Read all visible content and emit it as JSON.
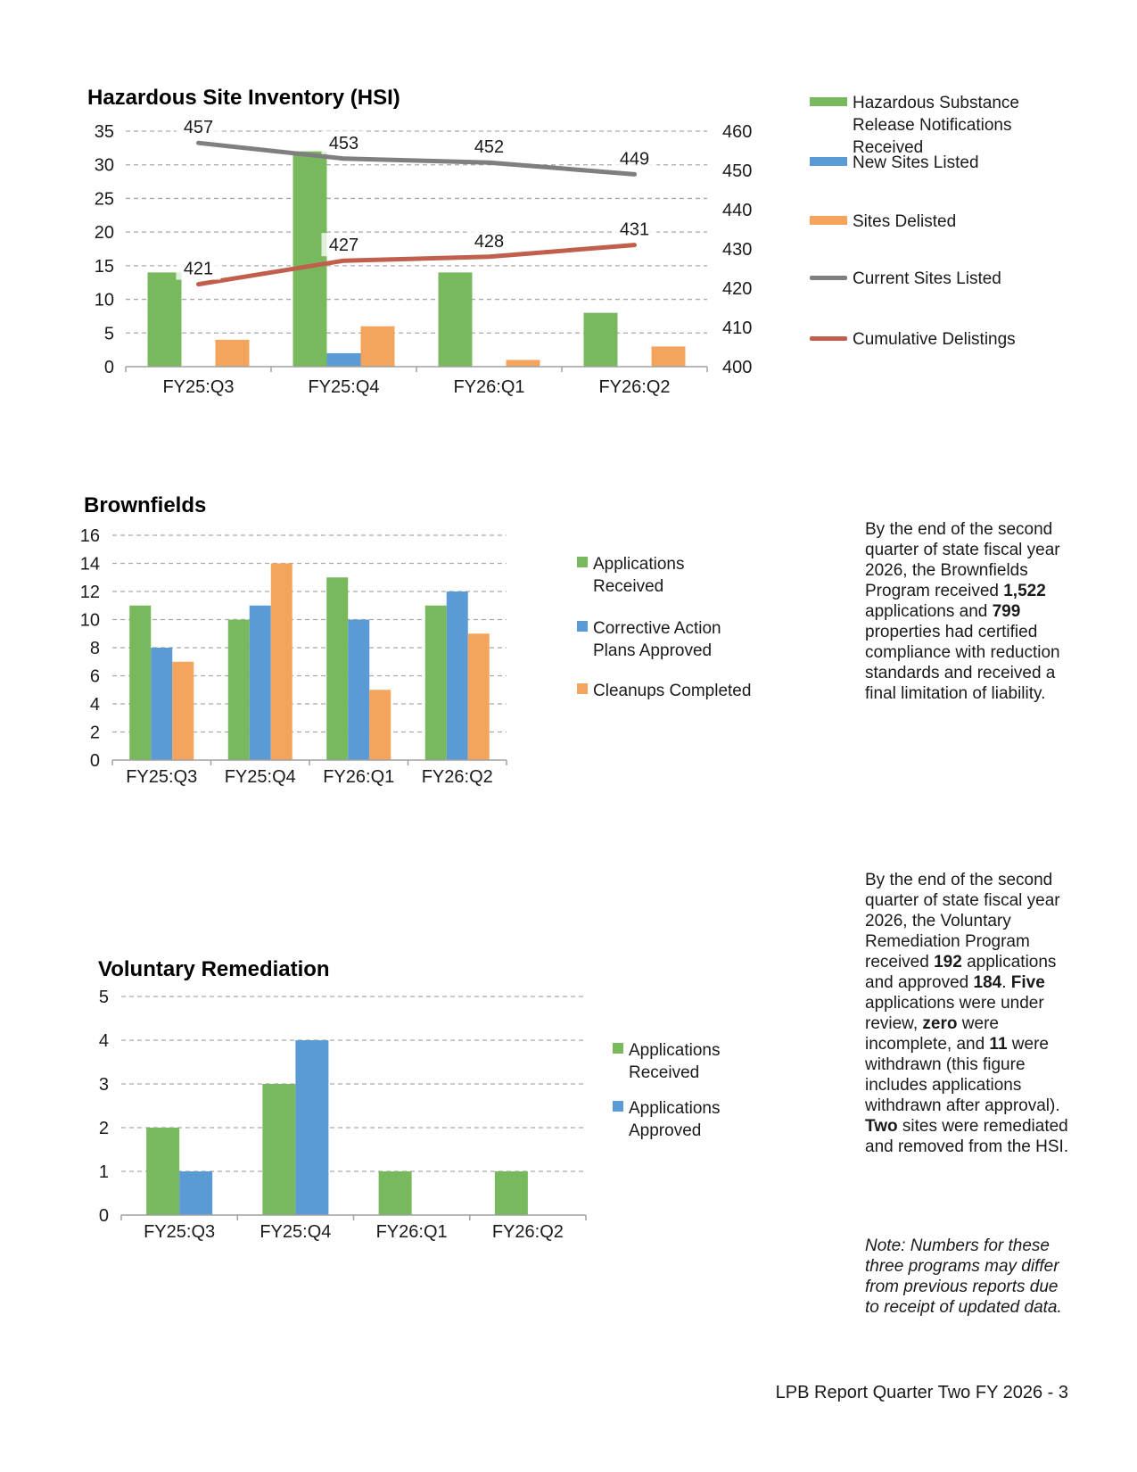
{
  "footer": "LPB Report Quarter Two FY 2026 - 3",
  "colors": {
    "green": "#77b95c",
    "blue": "#5b9bd5",
    "orange": "#f4a45c",
    "gray": "#7f7f7f",
    "red": "#c0604c",
    "grid": "#a9a9a9",
    "axis": "#a0a0a0",
    "text": "#1a1a1a",
    "label_bg": "rgba(255,255,255,0.78)"
  },
  "chart_data": [
    {
      "type": "bar+line",
      "title": "Hazardous Site Inventory (HSI)",
      "categories": [
        "FY25:Q3",
        "FY25:Q4",
        "FY26:Q1",
        "FY26:Q2"
      ],
      "left_axis": {
        "min": 0,
        "max": 35,
        "step": 5
      },
      "right_axis": {
        "min": 400,
        "max": 460,
        "step": 10
      },
      "grid": true,
      "legend_position": "right",
      "series": [
        {
          "name": "Hazardous Substance Release Notifications Received",
          "type": "bar",
          "color": "green",
          "values": [
            14,
            32,
            14,
            8
          ]
        },
        {
          "name": "New Sites Listed",
          "type": "bar",
          "color": "blue",
          "values": [
            0,
            2,
            0,
            0
          ]
        },
        {
          "name": "Sites Delisted",
          "type": "bar",
          "color": "orange",
          "values": [
            4,
            6,
            1,
            3
          ]
        },
        {
          "name": "Current Sites Listed",
          "type": "line",
          "axis": "right",
          "color": "gray",
          "values": [
            457,
            453,
            452,
            449
          ],
          "data_labels": true
        },
        {
          "name": "Cumulative Delistings",
          "type": "line",
          "axis": "right",
          "color": "red",
          "values": [
            421,
            427,
            428,
            431
          ],
          "data_labels": true
        }
      ]
    },
    {
      "type": "bar",
      "title": "Brownfields",
      "categories": [
        "FY25:Q3",
        "FY25:Q4",
        "FY26:Q1",
        "FY26:Q2"
      ],
      "left_axis": {
        "min": 0,
        "max": 16,
        "step": 2
      },
      "grid": true,
      "legend_position": "right",
      "series": [
        {
          "name": "Applications Received",
          "type": "bar",
          "color": "green",
          "values": [
            11,
            10,
            13,
            11
          ]
        },
        {
          "name": "Corrective Action Plans Approved",
          "type": "bar",
          "color": "blue",
          "values": [
            8,
            11,
            10,
            12
          ]
        },
        {
          "name": "Cleanups Completed",
          "type": "bar",
          "color": "orange",
          "values": [
            7,
            14,
            5,
            9
          ]
        }
      ]
    },
    {
      "type": "bar",
      "title": "Voluntary Remediation",
      "categories": [
        "FY25:Q3",
        "FY25:Q4",
        "FY26:Q1",
        "FY26:Q2"
      ],
      "left_axis": {
        "min": 0,
        "max": 5,
        "step": 1
      },
      "grid": true,
      "legend_position": "right",
      "series": [
        {
          "name": "Applications Received",
          "type": "bar",
          "color": "green",
          "values": [
            2,
            3,
            1,
            1
          ]
        },
        {
          "name": "Applications Approved",
          "type": "bar",
          "color": "blue",
          "values": [
            1,
            4,
            0,
            0
          ]
        }
      ]
    }
  ],
  "text_blocks": {
    "brownfields": {
      "segments": [
        {
          "t": "By the end of the second quarter of state fiscal year 2026, the Brownfields Program received "
        },
        {
          "t": "1,522",
          "b": true
        },
        {
          "t": " applications and "
        },
        {
          "t": "799",
          "b": true
        },
        {
          "t": " properties had certified compliance with reduction standards and received a final limitation of liability."
        }
      ]
    },
    "voluntary_remediation": {
      "segments": [
        {
          "t": "By the end of the second quarter of state fiscal year 2026, the Voluntary Remediation Program received "
        },
        {
          "t": "192",
          "b": true
        },
        {
          "t": " applications and approved "
        },
        {
          "t": "184",
          "b": true
        },
        {
          "t": ". "
        },
        {
          "t": "Five",
          "b": true
        },
        {
          "t": " applications were under review, "
        },
        {
          "t": "zero",
          "b": true
        },
        {
          "t": " were incomplete, and "
        },
        {
          "t": "11",
          "b": true
        },
        {
          "t": " were withdrawn (this figure includes applications withdrawn after approval). "
        },
        {
          "t": "Two",
          "b": true
        },
        {
          "t": " sites were remediated and removed from the HSI."
        }
      ]
    },
    "note": "Note: Numbers for these three programs may differ from previous reports due to receipt of updated data."
  }
}
